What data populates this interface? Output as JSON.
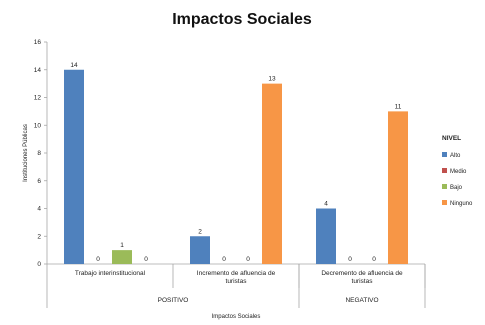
{
  "chart_data": {
    "type": "bar",
    "title": "Impactos Sociales",
    "ylabel": "Instituciones Públicas",
    "xlabel": "Impactos Sociales",
    "ylim": [
      0,
      16
    ],
    "yticks": [
      0,
      2,
      4,
      6,
      8,
      10,
      12,
      14,
      16
    ],
    "grid": false,
    "legend_position": "right",
    "legend_title": "NIVEL",
    "categories": [
      [
        "Trabajo interinstitucional"
      ],
      [
        "Incremento de afluencia de",
        "turistas"
      ],
      [
        "Decremento de afluencia de",
        "turistas"
      ]
    ],
    "groups": [
      {
        "label": "POSITIVO",
        "span": 2
      },
      {
        "label": "NEGATIVO",
        "span": 1
      }
    ],
    "series": [
      {
        "name": "Alto",
        "color": "#4f81bd",
        "values": [
          14,
          2,
          4
        ]
      },
      {
        "name": "Medio",
        "color": "#c0504d",
        "values": [
          0,
          0,
          0
        ]
      },
      {
        "name": "Bajo",
        "color": "#9bbb59",
        "values": [
          1,
          0,
          0
        ]
      },
      {
        "name": "Ninguno",
        "color": "#f79646",
        "values": [
          0,
          13,
          11
        ]
      }
    ]
  }
}
